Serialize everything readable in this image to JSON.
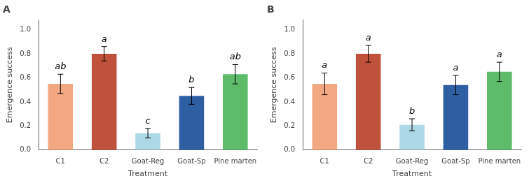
{
  "chart_data": [
    {
      "type": "bar",
      "title": "A",
      "categories": [
        "C1",
        "C2",
        "Goat-Reg",
        "Goat-Sp",
        "Pine marten"
      ],
      "values": [
        0.55,
        0.8,
        0.14,
        0.45,
        0.63
      ],
      "errors": [
        0.08,
        0.06,
        0.04,
        0.07,
        0.08
      ],
      "colors": [
        "#F4A882",
        "#C0513A",
        "#ADD8E6",
        "#2E5FA3",
        "#5DBB6A"
      ],
      "annotations": [
        {
          "category": "C1",
          "text": "ab"
        },
        {
          "category": "C2",
          "text": "a"
        },
        {
          "category": "Goat-Reg",
          "text": "c"
        },
        {
          "category": "Goat-Sp",
          "text": "b"
        },
        {
          "category": "Pine marten",
          "text": "ab"
        }
      ],
      "x_label": "Treatment",
      "y_label": "Emergence success",
      "ylim": [
        0.0,
        1.08
      ],
      "yticks": [
        {
          "value": 0.0,
          "label": "0.0"
        },
        0.2,
        0.4,
        0.6,
        0.8,
        {
          "value": 1.0,
          "label": "1.0"
        }
      ],
      "grid": false
    },
    {
      "type": "bar",
      "title": "B",
      "categories": [
        "C1",
        "C2",
        "Goat-Reg",
        "Goat-Sp",
        "Pine marten"
      ],
      "values": [
        0.55,
        0.8,
        0.21,
        0.54,
        0.65
      ],
      "errors": [
        0.09,
        0.07,
        0.05,
        0.08,
        0.08
      ],
      "colors": [
        "#F4A882",
        "#C0513A",
        "#ADD8E6",
        "#2E5FA3",
        "#5DBB6A"
      ],
      "annotations": [
        {
          "category": "C1",
          "text": "a"
        },
        {
          "category": "C2",
          "text": "a"
        },
        {
          "category": "Goat-Reg",
          "text": "b"
        },
        {
          "category": "Goat-Sp",
          "text": "a"
        },
        {
          "category": "Pine marten",
          "text": "a"
        }
      ],
      "x_label": "Treatment",
      "y_label": "Emergence success",
      "ylim": [
        0.0,
        1.08
      ],
      "yticks": [
        {
          "value": 0.0,
          "label": "0.0"
        },
        0.2,
        0.4,
        0.6,
        0.8,
        {
          "value": 1.0,
          "label": "1.0"
        }
      ],
      "grid": false
    }
  ]
}
